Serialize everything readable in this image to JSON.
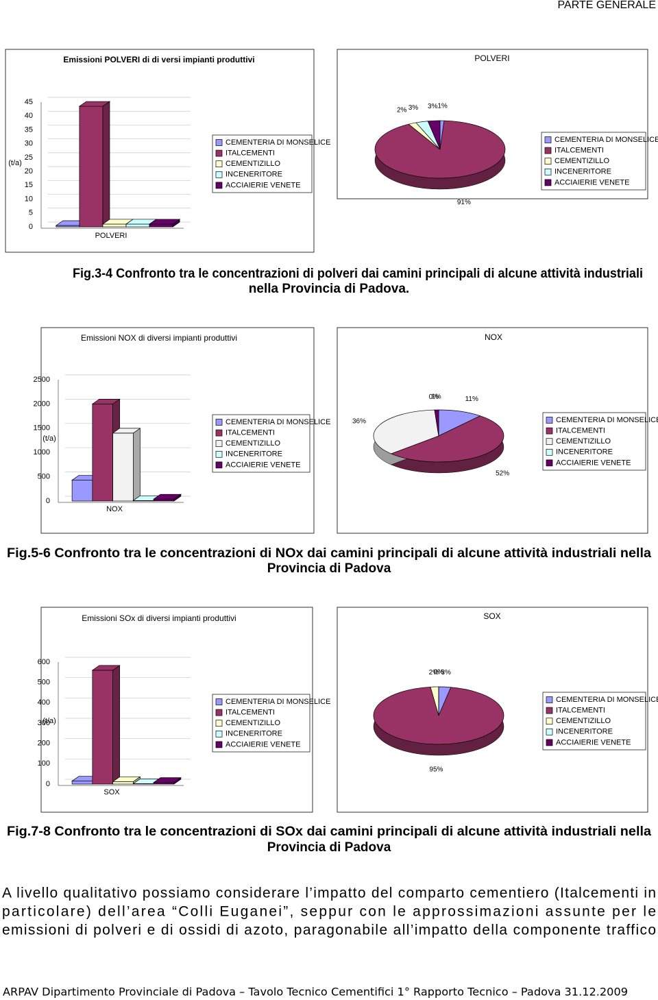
{
  "header": "PARTE GENERALE",
  "chart_data": [
    {
      "type": "bar",
      "title": "Emissioni POLVERI di di versi impianti produttivi",
      "y_label": "(t/a)",
      "categories": [
        "POLVERI"
      ],
      "series": [
        {
          "name": "CEMENTERIA DI MONSELICE",
          "color": "#9999ff",
          "values": [
            0.5
          ]
        },
        {
          "name": "ITALCEMENTI",
          "color": "#993366",
          "values": [
            43.5
          ]
        },
        {
          "name": "CEMENTIZILLO",
          "color": "#ffffcc",
          "values": [
            1
          ]
        },
        {
          "name": "INCENERITORE",
          "color": "#ccffff",
          "values": [
            1
          ]
        },
        {
          "name": "ACCIAIERIE VENETE",
          "color": "#660066",
          "values": [
            1
          ]
        }
      ],
      "ylim": [
        0,
        45
      ],
      "yticks": [
        0,
        5,
        10,
        15,
        20,
        25,
        30,
        35,
        40,
        45
      ],
      "grid": true,
      "legend": "right"
    },
    {
      "type": "pie",
      "title": "POLVERI",
      "categories": [
        "CEMENTERIA DI MONSELICE",
        "ITALCEMENTI",
        "CEMENTIZILLO",
        "INCENERITORE",
        "ACCIAIERIE VENETE"
      ],
      "colors": [
        "#9999ff",
        "#993366",
        "#ffffcc",
        "#ccffff",
        "#660066"
      ],
      "values": [
        1,
        91,
        2,
        3,
        3
      ],
      "value_labels": [
        "1%",
        "91%",
        "2%",
        "3%",
        "3%"
      ],
      "legend": "right"
    },
    {
      "type": "bar",
      "title": "Emissioni NOX di diversi impianti produttivi",
      "y_label": "(t/a)",
      "categories": [
        "NOX"
      ],
      "series": [
        {
          "name": "CEMENTERIA DI MONSELICE",
          "color": "#9999ff",
          "values": [
            430
          ]
        },
        {
          "name": "ITALCEMENTI",
          "color": "#993366",
          "values": [
            2000
          ]
        },
        {
          "name": "CEMENTIZILLO",
          "color": "#f2f2f2",
          "values": [
            1400
          ]
        },
        {
          "name": "INCENERITORE",
          "color": "#ccffff",
          "values": [
            10
          ]
        },
        {
          "name": "ACCIAIERIE VENETE",
          "color": "#660066",
          "values": [
            40
          ]
        }
      ],
      "ylim": [
        0,
        2500
      ],
      "yticks": [
        0,
        500,
        1000,
        1500,
        2000,
        2500
      ],
      "grid": true,
      "legend": "right"
    },
    {
      "type": "pie",
      "title": "NOX",
      "categories": [
        "CEMENTERIA DI MONSELICE",
        "ITALCEMENTI",
        "CEMENTIZILLO",
        "INCENERITORE",
        "ACCIAIERIE VENETE"
      ],
      "colors": [
        "#9999ff",
        "#993366",
        "#f2f2f2",
        "#ccffff",
        "#660066"
      ],
      "values": [
        11,
        52,
        36,
        0,
        1
      ],
      "value_labels": [
        "11%",
        "52%",
        "36%",
        "0%",
        "1%"
      ],
      "legend": "right"
    },
    {
      "type": "bar",
      "title": "Emissioni SOx di diversi impianti produttivi",
      "y_label": "(t/a)",
      "categories": [
        "SOX"
      ],
      "series": [
        {
          "name": "CEMENTERIA DI MONSELICE",
          "color": "#9999ff",
          "values": [
            15
          ]
        },
        {
          "name": "ITALCEMENTI",
          "color": "#993366",
          "values": [
            560
          ]
        },
        {
          "name": "CEMENTIZILLO",
          "color": "#ffffcc",
          "values": [
            12
          ]
        },
        {
          "name": "INCENERITORE",
          "color": "#ccffff",
          "values": [
            2
          ]
        },
        {
          "name": "ACCIAIERIE VENETE",
          "color": "#660066",
          "values": [
            8
          ]
        }
      ],
      "ylim": [
        0,
        600
      ],
      "yticks": [
        0,
        100,
        200,
        300,
        400,
        500,
        600
      ],
      "grid": true,
      "legend": "right"
    },
    {
      "type": "pie",
      "title": "SOX",
      "categories": [
        "CEMENTERIA DI MONSELICE",
        "ITALCEMENTI",
        "CEMENTIZILLO",
        "INCENERITORE",
        "ACCIAIERIE VENETE"
      ],
      "colors": [
        "#9999ff",
        "#993366",
        "#ffffcc",
        "#ccffff",
        "#660066"
      ],
      "values": [
        3,
        95,
        2,
        0,
        0
      ],
      "value_labels": [
        "3%",
        "95%",
        "2%",
        "0%",
        "0%"
      ],
      "legend": "right"
    }
  ],
  "captions": [
    [
      "Fig.3-4 Confronto tra le concentrazioni di polveri dai camini principali di alcune attività industriali",
      "nella Provincia di Padova."
    ],
    [
      "Fig.5-6 Confronto tra le concentrazioni di NOx dai camini principali di alcune attività industriali nella",
      "Provincia di Padova"
    ],
    [
      "Fig.7-8 Confronto tra le concentrazioni di SOx dai camini principali di alcune attività industriali nella",
      "Provincia di Padova"
    ]
  ],
  "paragraph": [
    "A livello qualitativo possiamo considerare l’impatto del comparto cementiero (Italcementi in",
    "particolare) dell’area “Colli Euganei”, seppur con le approssimazioni assunte per le",
    "emissioni di polveri e di ossidi di azoto,  paragonabile all’impatto della componente traffico"
  ],
  "footer": "ARPAV Dipartimento Provinciale di Padova – Tavolo Tecnico Cementifici 1° Rapporto Tecnico – Padova 31.12.2009"
}
